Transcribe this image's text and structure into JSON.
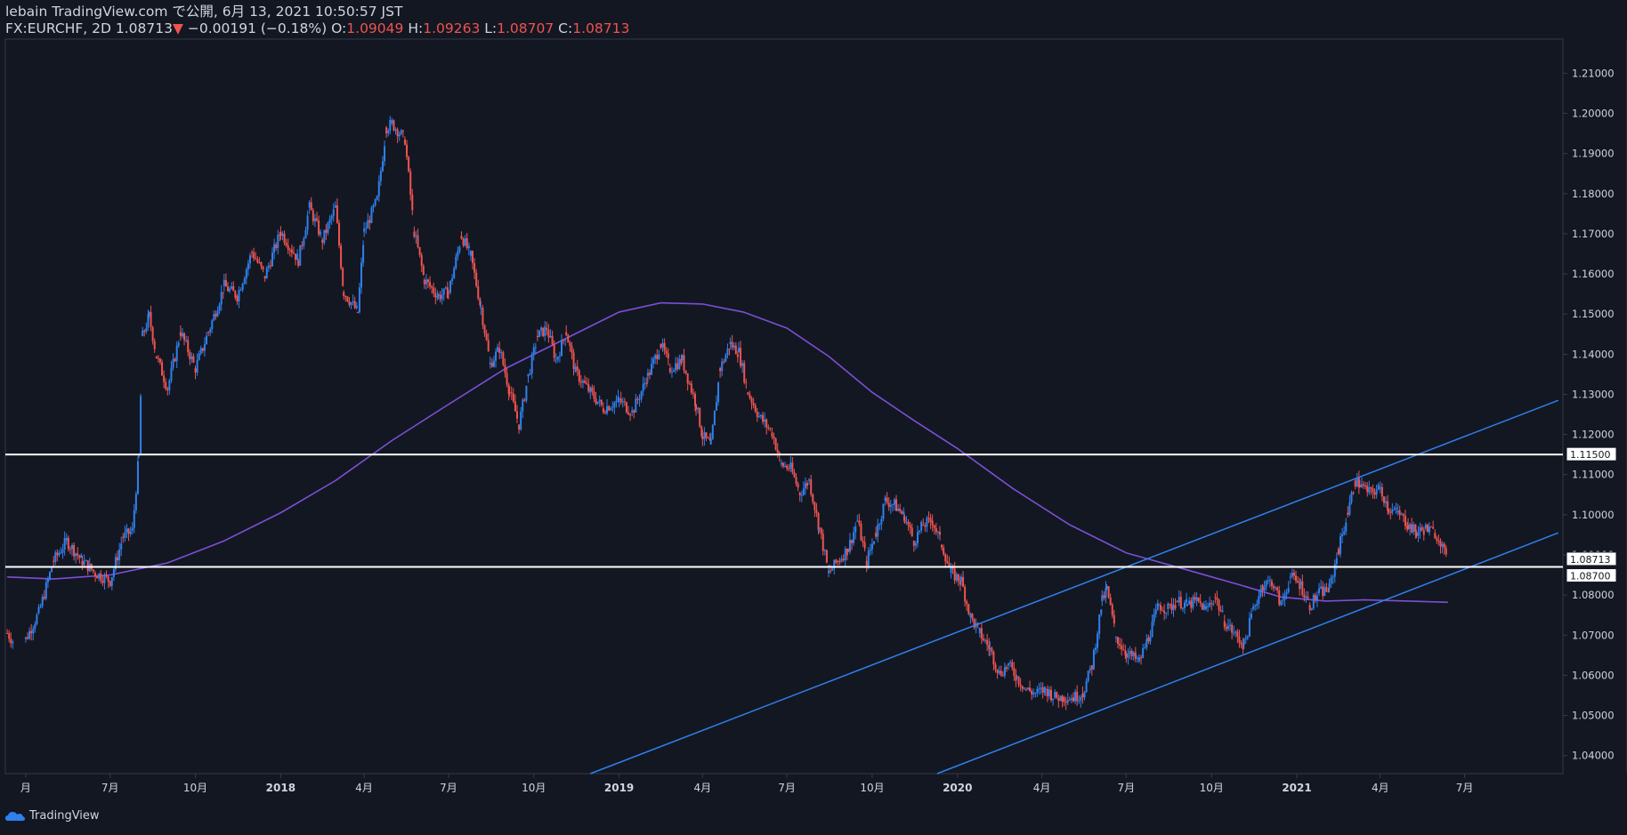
{
  "header": {
    "line1": "lebain TradingView.com で公開, 6月 13, 2021 10:50:57 JST",
    "symbol": "FX:EURCHF, 2D",
    "last": "1.08713",
    "change": "−0.00191 (−0.18%)",
    "o_label": "O:",
    "o_value": "1.09049",
    "h_label": "H:",
    "h_value": "1.09263",
    "l_label": "L:",
    "l_value": "1.08707",
    "c_label": "C:",
    "c_value": "1.08713"
  },
  "footer": {
    "brand": "TradingView"
  },
  "colors": {
    "background": "#131722",
    "up": "#2f80ed",
    "down": "#ef5350",
    "ma": "#7b4fd6",
    "trendline": "#2f80ed",
    "hline": "#ffffff",
    "axis_text": "#d1d4dc",
    "border": "#363a45"
  },
  "chart_data": {
    "type": "line",
    "title": "",
    "xlabel": "",
    "ylabel": "",
    "ylim": [
      1.0355,
      1.2185
    ],
    "y_ticks": [
      "1.21000",
      "1.20000",
      "1.19000",
      "1.18000",
      "1.17000",
      "1.16000",
      "1.15000",
      "1.14000",
      "1.13000",
      "1.12000",
      "1.11000",
      "1.10000",
      "1.09000",
      "1.08000",
      "1.07000",
      "1.06000",
      "1.05000",
      "1.04000"
    ],
    "x_ticks": [
      {
        "label": "月",
        "date": "2017-04-01",
        "bold": false
      },
      {
        "label": "7月",
        "date": "2017-07-01",
        "bold": false
      },
      {
        "label": "10月",
        "date": "2017-10-01",
        "bold": false
      },
      {
        "label": "2018",
        "date": "2018-01-01",
        "bold": true
      },
      {
        "label": "4月",
        "date": "2018-04-01",
        "bold": false
      },
      {
        "label": "7月",
        "date": "2018-07-01",
        "bold": false
      },
      {
        "label": "10月",
        "date": "2018-10-01",
        "bold": false
      },
      {
        "label": "2019",
        "date": "2019-01-01",
        "bold": true
      },
      {
        "label": "4月",
        "date": "2019-04-01",
        "bold": false
      },
      {
        "label": "7月",
        "date": "2019-07-01",
        "bold": false
      },
      {
        "label": "10月",
        "date": "2019-10-01",
        "bold": false
      },
      {
        "label": "2020",
        "date": "2020-01-01",
        "bold": true
      },
      {
        "label": "4月",
        "date": "2020-04-01",
        "bold": false
      },
      {
        "label": "7月",
        "date": "2020-07-01",
        "bold": false
      },
      {
        "label": "10月",
        "date": "2020-10-01",
        "bold": false
      },
      {
        "label": "2021",
        "date": "2021-01-01",
        "bold": true
      },
      {
        "label": "4月",
        "date": "2021-04-01",
        "bold": false
      },
      {
        "label": "7月",
        "date": "2021-07-01",
        "bold": false
      }
    ],
    "series": [
      {
        "name": "FX:EURCHF 2D close",
        "kind": "candle-close",
        "points": [
          [
            "2017-03-12",
            1.0705
          ],
          [
            "2017-03-20",
            1.068
          ],
          [
            "2017-04-01",
            1.069
          ],
          [
            "2017-04-15",
            1.0755
          ],
          [
            "2017-05-01",
            1.0885
          ],
          [
            "2017-05-15",
            1.0935
          ],
          [
            "2017-06-01",
            1.0885
          ],
          [
            "2017-06-15",
            1.0855
          ],
          [
            "2017-07-01",
            1.0835
          ],
          [
            "2017-07-15",
            1.0945
          ],
          [
            "2017-07-25",
            1.096
          ],
          [
            "2017-08-01",
            1.1145
          ],
          [
            "2017-08-05",
            1.1445
          ],
          [
            "2017-08-12",
            1.1495
          ],
          [
            "2017-08-20",
            1.1395
          ],
          [
            "2017-09-01",
            1.1315
          ],
          [
            "2017-09-15",
            1.1455
          ],
          [
            "2017-10-01",
            1.1365
          ],
          [
            "2017-10-15",
            1.1455
          ],
          [
            "2017-11-01",
            1.157
          ],
          [
            "2017-11-15",
            1.1545
          ],
          [
            "2017-12-01",
            1.1655
          ],
          [
            "2017-12-15",
            1.1595
          ],
          [
            "2018-01-01",
            1.1705
          ],
          [
            "2018-01-20",
            1.1635
          ],
          [
            "2018-02-01",
            1.1765
          ],
          [
            "2018-02-15",
            1.1685
          ],
          [
            "2018-03-01",
            1.1765
          ],
          [
            "2018-03-10",
            1.1555
          ],
          [
            "2018-03-25",
            1.1505
          ],
          [
            "2018-04-01",
            1.1705
          ],
          [
            "2018-04-15",
            1.1785
          ],
          [
            "2018-04-25",
            1.1965
          ],
          [
            "2018-05-01",
            1.1975
          ],
          [
            "2018-05-15",
            1.1935
          ],
          [
            "2018-05-25",
            1.1705
          ],
          [
            "2018-06-05",
            1.1585
          ],
          [
            "2018-06-20",
            1.1545
          ],
          [
            "2018-07-01",
            1.1555
          ],
          [
            "2018-07-15",
            1.1695
          ],
          [
            "2018-07-25",
            1.1645
          ],
          [
            "2018-08-05",
            1.1515
          ],
          [
            "2018-08-15",
            1.1375
          ],
          [
            "2018-08-25",
            1.1415
          ],
          [
            "2018-09-05",
            1.1305
          ],
          [
            "2018-09-15",
            1.1225
          ],
          [
            "2018-09-25",
            1.1345
          ],
          [
            "2018-10-05",
            1.1445
          ],
          [
            "2018-10-15",
            1.1465
          ],
          [
            "2018-10-25",
            1.1385
          ],
          [
            "2018-11-05",
            1.1455
          ],
          [
            "2018-11-15",
            1.1355
          ],
          [
            "2018-12-01",
            1.1305
          ],
          [
            "2018-12-15",
            1.1265
          ],
          [
            "2019-01-01",
            1.1285
          ],
          [
            "2019-01-15",
            1.1255
          ],
          [
            "2019-02-01",
            1.1345
          ],
          [
            "2019-02-15",
            1.1425
          ],
          [
            "2019-02-25",
            1.1365
          ],
          [
            "2019-03-10",
            1.1385
          ],
          [
            "2019-03-25",
            1.1275
          ],
          [
            "2019-04-01",
            1.1195
          ],
          [
            "2019-04-10",
            1.1175
          ],
          [
            "2019-04-20",
            1.1365
          ],
          [
            "2019-05-01",
            1.1425
          ],
          [
            "2019-05-10",
            1.1405
          ],
          [
            "2019-05-20",
            1.1305
          ],
          [
            "2019-06-01",
            1.1245
          ],
          [
            "2019-06-15",
            1.1205
          ],
          [
            "2019-06-25",
            1.1125
          ],
          [
            "2019-07-05",
            1.1115
          ],
          [
            "2019-07-15",
            1.1055
          ],
          [
            "2019-07-25",
            1.1085
          ],
          [
            "2019-08-05",
            1.0965
          ],
          [
            "2019-08-15",
            1.0855
          ],
          [
            "2019-08-25",
            1.0885
          ],
          [
            "2019-09-05",
            1.0915
          ],
          [
            "2019-09-15",
            1.0985
          ],
          [
            "2019-09-25",
            1.0885
          ],
          [
            "2019-10-05",
            1.0955
          ],
          [
            "2019-10-15",
            1.1035
          ],
          [
            "2019-10-25",
            1.1025
          ],
          [
            "2019-11-05",
            1.0995
          ],
          [
            "2019-11-15",
            1.0935
          ],
          [
            "2019-11-25",
            1.0975
          ],
          [
            "2019-12-05",
            1.0985
          ],
          [
            "2019-12-15",
            1.0925
          ],
          [
            "2019-12-25",
            1.0855
          ],
          [
            "2020-01-05",
            1.0835
          ],
          [
            "2020-01-15",
            1.0745
          ],
          [
            "2020-01-25",
            1.0705
          ],
          [
            "2020-02-05",
            1.0665
          ],
          [
            "2020-02-15",
            1.0605
          ],
          [
            "2020-02-25",
            1.0625
          ],
          [
            "2020-03-05",
            1.0595
          ],
          [
            "2020-03-15",
            1.0565
          ],
          [
            "2020-03-25",
            1.0555
          ],
          [
            "2020-04-05",
            1.0565
          ],
          [
            "2020-04-15",
            1.0545
          ],
          [
            "2020-04-25",
            1.0545
          ],
          [
            "2020-05-05",
            1.0545
          ],
          [
            "2020-05-15",
            1.0555
          ],
          [
            "2020-05-25",
            1.0625
          ],
          [
            "2020-06-05",
            1.0785
          ],
          [
            "2020-06-10",
            1.0815
          ],
          [
            "2020-06-20",
            1.0695
          ],
          [
            "2020-07-01",
            1.0655
          ],
          [
            "2020-07-15",
            1.0635
          ],
          [
            "2020-07-25",
            1.0695
          ],
          [
            "2020-08-05",
            1.0775
          ],
          [
            "2020-08-15",
            1.0765
          ],
          [
            "2020-08-25",
            1.0785
          ],
          [
            "2020-09-05",
            1.0775
          ],
          [
            "2020-09-15",
            1.0785
          ],
          [
            "2020-09-25",
            1.0765
          ],
          [
            "2020-10-05",
            1.0795
          ],
          [
            "2020-10-15",
            1.0735
          ],
          [
            "2020-10-25",
            1.0705
          ],
          [
            "2020-11-05",
            1.0675
          ],
          [
            "2020-11-15",
            1.0765
          ],
          [
            "2020-11-25",
            1.0825
          ],
          [
            "2020-12-05",
            1.0835
          ],
          [
            "2020-12-15",
            1.0775
          ],
          [
            "2020-12-25",
            1.0845
          ],
          [
            "2021-01-05",
            1.0825
          ],
          [
            "2021-01-15",
            1.0775
          ],
          [
            "2021-01-25",
            1.0805
          ],
          [
            "2021-02-05",
            1.0815
          ],
          [
            "2021-02-15",
            1.0915
          ],
          [
            "2021-02-25",
            1.1005
          ],
          [
            "2021-03-05",
            1.1085
          ],
          [
            "2021-03-10",
            1.1075
          ],
          [
            "2021-03-20",
            1.1055
          ],
          [
            "2021-04-01",
            1.1065
          ],
          [
            "2021-04-10",
            1.1015
          ],
          [
            "2021-04-20",
            1.1005
          ],
          [
            "2021-05-01",
            1.0975
          ],
          [
            "2021-05-10",
            1.0955
          ],
          [
            "2021-05-20",
            1.0965
          ],
          [
            "2021-05-30",
            1.0955
          ],
          [
            "2021-06-05",
            1.0935
          ],
          [
            "2021-06-13",
            1.0871
          ]
        ]
      },
      {
        "name": "Moving average",
        "kind": "line",
        "points": [
          [
            "2017-03-12",
            1.0845
          ],
          [
            "2017-05-01",
            1.084
          ],
          [
            "2017-07-01",
            1.085
          ],
          [
            "2017-09-01",
            1.088
          ],
          [
            "2017-11-01",
            1.0935
          ],
          [
            "2018-01-01",
            1.1005
          ],
          [
            "2018-03-01",
            1.1085
          ],
          [
            "2018-05-01",
            1.1185
          ],
          [
            "2018-07-01",
            1.1275
          ],
          [
            "2018-09-01",
            1.1365
          ],
          [
            "2018-11-01",
            1.1435
          ],
          [
            "2019-01-01",
            1.1505
          ],
          [
            "2019-02-15",
            1.1528
          ],
          [
            "2019-04-01",
            1.1525
          ],
          [
            "2019-05-15",
            1.1505
          ],
          [
            "2019-07-01",
            1.1465
          ],
          [
            "2019-08-15",
            1.1395
          ],
          [
            "2019-10-01",
            1.1305
          ],
          [
            "2019-11-15",
            1.1235
          ],
          [
            "2020-01-01",
            1.1165
          ],
          [
            "2020-03-01",
            1.1065
          ],
          [
            "2020-05-01",
            1.0975
          ],
          [
            "2020-07-01",
            1.0905
          ],
          [
            "2020-09-01",
            1.0865
          ],
          [
            "2020-11-01",
            1.0825
          ],
          [
            "2020-12-15",
            1.0795
          ],
          [
            "2021-02-01",
            1.0785
          ],
          [
            "2021-03-15",
            1.0788
          ],
          [
            "2021-05-01",
            1.0785
          ],
          [
            "2021-06-13",
            1.0782
          ]
        ]
      },
      {
        "name": "Channel upper",
        "kind": "trendline",
        "points": [
          [
            "2018-12-01",
            1.0355
          ],
          [
            "2021-10-10",
            1.1285
          ]
        ]
      },
      {
        "name": "Channel lower",
        "kind": "trendline",
        "points": [
          [
            "2019-12-10",
            1.0355
          ],
          [
            "2021-10-10",
            1.0955
          ]
        ]
      },
      {
        "name": "Horizontal 1.11500",
        "kind": "hline",
        "value": 1.115
      },
      {
        "name": "Horizontal 1.08700",
        "kind": "hline",
        "value": 1.087
      }
    ],
    "price_labels": [
      {
        "text": "1.11500",
        "value": 1.115
      },
      {
        "text": "1.08713",
        "value": 1.08713
      },
      {
        "text": "1.08700",
        "value": 1.087
      }
    ],
    "grid": false,
    "legend": "none"
  }
}
